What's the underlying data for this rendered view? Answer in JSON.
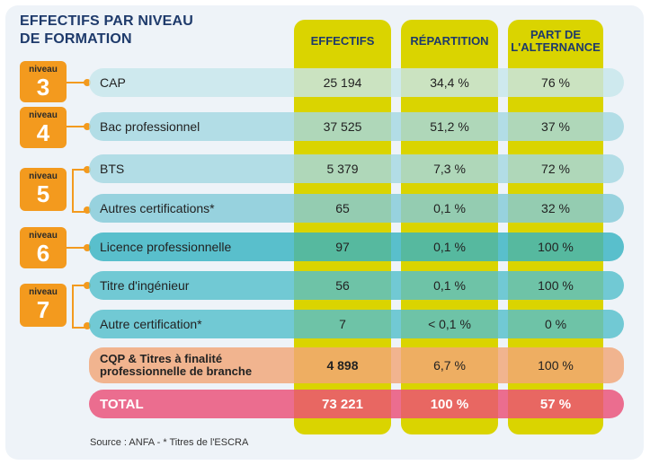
{
  "title": [
    "EFFECTIFS PAR NIVEAU",
    "DE FORMATION"
  ],
  "columns": {
    "effectifs": "EFFECTIFS",
    "repartition": "RÉPARTITION",
    "alternance": [
      "PART DE",
      "L'ALTERNANCE"
    ]
  },
  "levels": [
    {
      "word": "niveau",
      "number": "3"
    },
    {
      "word": "niveau",
      "number": "4"
    },
    {
      "word": "niveau",
      "number": "5"
    },
    {
      "word": "niveau",
      "number": "6"
    },
    {
      "word": "niveau",
      "number": "7"
    }
  ],
  "rows": [
    {
      "label": "CAP",
      "effectifs": "25 194",
      "repartition": "34,4 %",
      "alternance": "76 %",
      "color": "#c7e6ec"
    },
    {
      "label": "Bac professionnel",
      "effectifs": "37 525",
      "repartition": "51,2 %",
      "alternance": "37 %",
      "color": "#a5d8e2"
    },
    {
      "label": "BTS",
      "effectifs": "5 379",
      "repartition": "7,3 %",
      "alternance": "72 %",
      "color": "#a5d8e2"
    },
    {
      "label": "Autres certifications*",
      "effectifs": "65",
      "repartition": "0,1 %",
      "alternance": "32 %",
      "color": "#84cbd8"
    },
    {
      "label": "Licence professionnelle",
      "effectifs": "97",
      "repartition": "0,1 %",
      "alternance": "100 %",
      "color": "#38b3c2"
    },
    {
      "label": "Titre d'ingénieur",
      "effectifs": "56",
      "repartition": "0,1 %",
      "alternance": "100 %",
      "color": "#55bfcc"
    },
    {
      "label": "Autre certification*",
      "effectifs": "7",
      "repartition": "< 0,1 %",
      "alternance": "0 %",
      "color": "#55bfcc"
    },
    {
      "label": "CQP & Titres à finalité professionnelle de branche",
      "effectifs": "4 898",
      "repartition": "6,7 %",
      "alternance": "100 %",
      "color": "#f2a678"
    },
    {
      "label": "TOTAL",
      "effectifs": "73 221",
      "repartition": "100 %",
      "alternance": "57 %",
      "color": "#ea4f77"
    }
  ],
  "source": "Source : ANFA - * Titres de l'ESCRA"
}
